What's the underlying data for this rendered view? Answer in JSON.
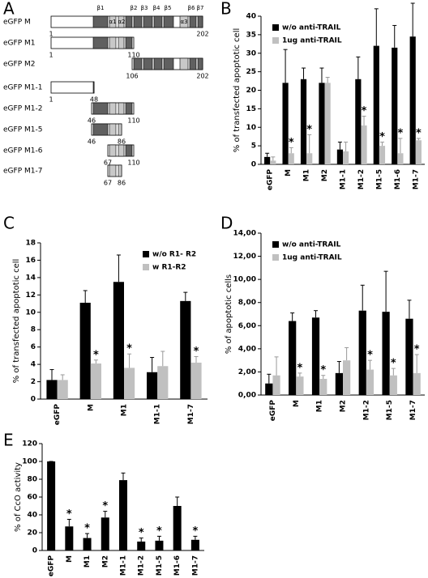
{
  "diagram": {
    "panel": "A",
    "features": [
      "β1",
      "α1",
      "α2",
      "β2",
      "β3",
      "β4",
      "β5",
      "β6",
      "β7",
      "α3"
    ],
    "rows": [
      {
        "label": "eGFP M",
        "start": 1,
        "end": 202
      },
      {
        "label": "eGFP M1",
        "start": 1,
        "end": 110
      },
      {
        "label": "eGFP M2",
        "start": 106,
        "end": 202
      },
      {
        "label": "eGFP M1-1",
        "start": 1,
        "end": 48
      },
      {
        "label": "eGFP M1-2",
        "start": 46,
        "end": 110
      },
      {
        "label": "eGFP M1-5",
        "start": 46,
        "end": 86
      },
      {
        "label": "eGFP M1-6",
        "start": 67,
        "end": 110
      },
      {
        "label": "eGFP M1-7",
        "start": 67,
        "end": 86
      }
    ]
  },
  "chart_data": [
    {
      "type": "bar",
      "panel": "B",
      "y_label": "% of transfected apoptotic cell",
      "categories": [
        "eGFP",
        "M",
        "M1",
        "M2",
        "M1-1",
        "M1-2",
        "M1-5",
        "M1-6",
        "M1-7"
      ],
      "series": [
        {
          "name": "w/o anti-TRAIL",
          "color": "#000000",
          "values": [
            2,
            22,
            23,
            22,
            4,
            23,
            32,
            31.5,
            34.5
          ],
          "errors": [
            1,
            9,
            3,
            4,
            2,
            6,
            10,
            6,
            9
          ]
        },
        {
          "name": "1ug anti-TRAIL",
          "color": "#c0c0c0",
          "values": [
            1,
            3,
            3,
            22,
            3.5,
            10.5,
            5,
            3,
            6.5
          ],
          "errors": [
            1,
            1.5,
            5,
            1.5,
            2.5,
            2.5,
            1,
            4,
            0.5
          ]
        }
      ],
      "annotations": [
        {
          "text": "*",
          "category": "M"
        },
        {
          "text": "*",
          "category": "M1"
        },
        {
          "text": "*",
          "category": "M1-2"
        },
        {
          "text": "*",
          "category": "M1-5"
        },
        {
          "text": "*",
          "category": "M1-6"
        },
        {
          "text": "*",
          "category": "M1-7"
        }
      ],
      "ylim": [
        0,
        40
      ],
      "yticks": [
        0,
        5,
        10,
        15,
        20,
        25,
        30,
        35,
        40
      ],
      "legend": "upper left"
    },
    {
      "type": "bar",
      "panel": "C",
      "y_label": "% of transfected apoptotic cell",
      "categories": [
        "eGFP",
        "M",
        "M1",
        "M1-1",
        "M1-7"
      ],
      "series": [
        {
          "name": "w/o R1- R2",
          "color": "#000000",
          "values": [
            2.2,
            11.1,
            13.5,
            3.1,
            11.3
          ],
          "errors": [
            1.2,
            1.4,
            3.1,
            1.7,
            1.0
          ]
        },
        {
          "name": "w R1-R2",
          "color": "#c0c0c0",
          "values": [
            2.2,
            4.1,
            3.6,
            3.8,
            4.2
          ],
          "errors": [
            0.6,
            0.4,
            1.6,
            1.7,
            0.7
          ]
        }
      ],
      "annotations": [
        {
          "text": "*",
          "category": "M"
        },
        {
          "text": "*",
          "category": "M1"
        },
        {
          "text": "*",
          "category": "M1-7"
        }
      ],
      "ylim": [
        0,
        18
      ],
      "yticks": [
        0,
        2,
        4,
        6,
        8,
        10,
        12,
        14,
        16,
        18
      ],
      "legend": "upper right"
    },
    {
      "type": "bar",
      "panel": "D",
      "y_label": "% of apoptotic cells",
      "categories": [
        "eGFP",
        "M",
        "M1",
        "M2",
        "M1-2",
        "M1-5",
        "M1-7"
      ],
      "series": [
        {
          "name": "w/o anti-TRAIL",
          "color": "#000000",
          "values": [
            1.0,
            6.4,
            6.7,
            1.9,
            7.3,
            7.2,
            6.6
          ],
          "errors": [
            0.8,
            0.7,
            0.6,
            1.0,
            2.2,
            3.5,
            1.6
          ]
        },
        {
          "name": "1ug anti-TRAIL",
          "color": "#c0c0c0",
          "values": [
            1.7,
            1.6,
            1.4,
            3.0,
            2.2,
            1.7,
            1.9
          ],
          "errors": [
            1.6,
            0.3,
            0.3,
            1.1,
            0.8,
            0.6,
            1.6
          ]
        }
      ],
      "annotations": [
        {
          "text": "*",
          "category": "M"
        },
        {
          "text": "*",
          "category": "M1"
        },
        {
          "text": "*",
          "category": "M1-2"
        },
        {
          "text": "*",
          "category": "M1-5"
        },
        {
          "text": "*",
          "category": "M1-7"
        }
      ],
      "ylim": [
        0,
        14
      ],
      "yticks": [
        {
          "value": 0,
          "label": "0,00"
        },
        {
          "value": 2,
          "label": "2,00"
        },
        {
          "value": 4,
          "label": "4,00"
        },
        {
          "value": 6,
          "label": "6,00"
        },
        {
          "value": 8,
          "label": "8,00"
        },
        {
          "value": 10,
          "label": "10,00"
        },
        {
          "value": 12,
          "label": "12,00"
        },
        {
          "value": 14,
          "label": "14,00"
        }
      ],
      "legend": "upper left"
    },
    {
      "type": "bar",
      "panel": "E",
      "y_label": "% of CcO activity",
      "categories": [
        "eGFP",
        "M",
        "M1",
        "M2",
        "M1-1",
        "M1-2",
        "M1-5",
        "M1-6",
        "M1-7"
      ],
      "series": [
        {
          "color": "#000000",
          "values": [
            100,
            27,
            14,
            37,
            79,
            10,
            11,
            50,
            12
          ],
          "errors": [
            0,
            8,
            5,
            7,
            8,
            4,
            5,
            10,
            4
          ]
        }
      ],
      "annotations": [
        {
          "text": "*",
          "category": "M"
        },
        {
          "text": "*",
          "category": "M1"
        },
        {
          "text": "*",
          "category": "M2"
        },
        {
          "text": "*",
          "category": "M1-2"
        },
        {
          "text": "*",
          "category": "M1-5"
        },
        {
          "text": "*",
          "category": "M1-7"
        }
      ],
      "ylim": [
        0,
        120
      ],
      "yticks": [
        0,
        20,
        40,
        60,
        80,
        100,
        120
      ]
    }
  ]
}
